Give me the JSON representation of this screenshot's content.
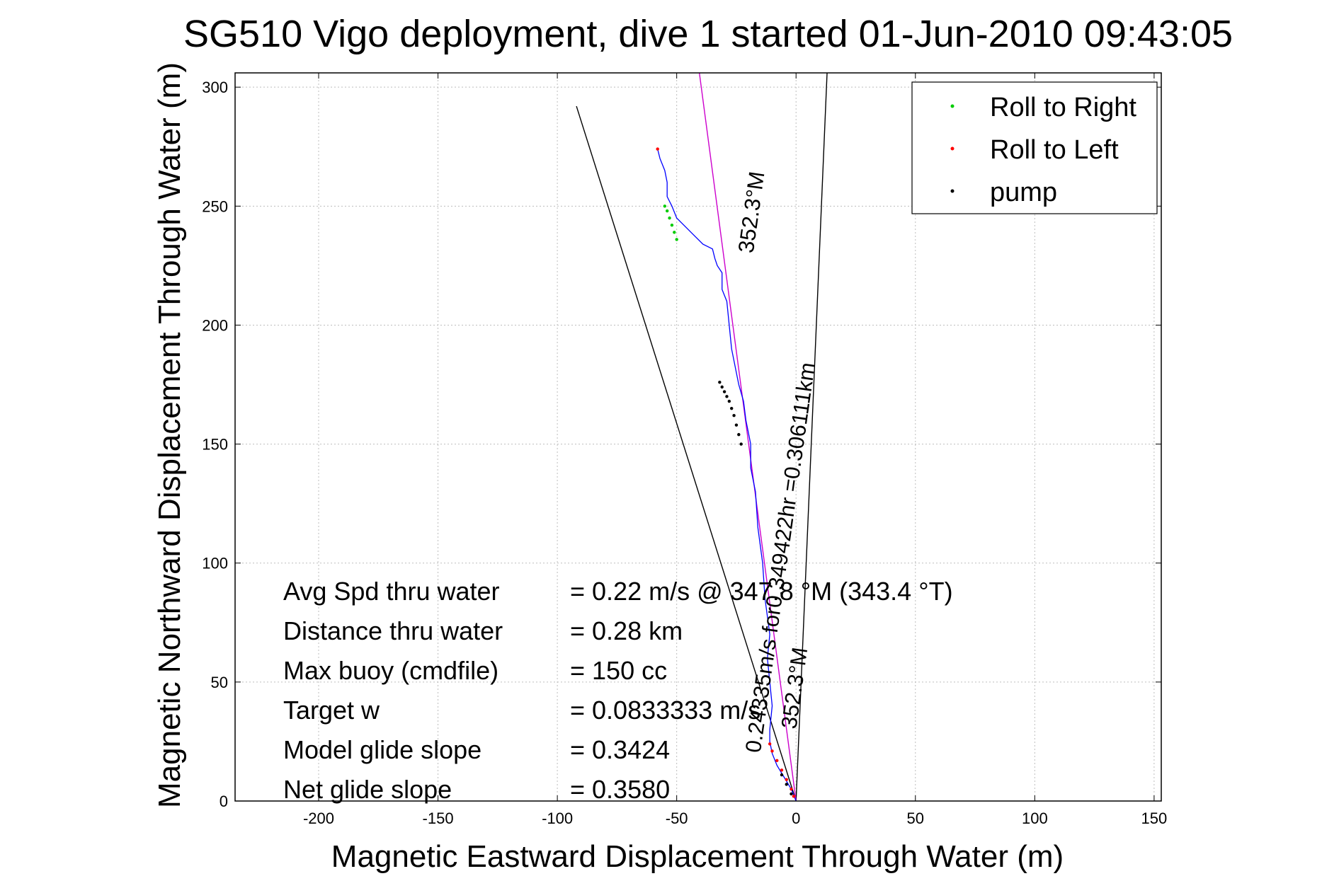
{
  "chart_data": {
    "type": "line",
    "title": "SG510 Vigo deployment, dive 1 started 01-Jun-2010 09:43:05",
    "xlabel": "Magnetic Eastward Displacement Through Water (m)",
    "ylabel": "Magnetic Northward Displacement Through Water (m)",
    "xlim": [
      -235,
      153
    ],
    "ylim": [
      0,
      306
    ],
    "xticks": [
      -200,
      -150,
      -100,
      -50,
      0,
      50,
      100,
      150
    ],
    "yticks": [
      0,
      50,
      100,
      150,
      200,
      250,
      300
    ],
    "grid": true,
    "legend_position": "top-right",
    "legend": [
      {
        "label": "Roll to Right",
        "color": "#00cc00"
      },
      {
        "label": "Roll to Left",
        "color": "#ff0000"
      },
      {
        "label": "pump",
        "color": "#000000"
      }
    ],
    "series": [
      {
        "color": "#0000ff",
        "x": [
          0,
          -2,
          -5,
          -8,
          -10,
          -11,
          -11,
          -10,
          -11,
          -12,
          -11,
          -13,
          -14,
          -16,
          -17,
          -19,
          -19,
          -21,
          -22,
          -24,
          -25,
          -27,
          -28,
          -29,
          -31,
          -31,
          -33,
          -34,
          -35,
          -39,
          -43,
          -47,
          -50,
          -52,
          -54,
          -54,
          -55,
          -57,
          -58
        ],
        "y": [
          0,
          5,
          10,
          15,
          20,
          25,
          30,
          40,
          50,
          60,
          70,
          85,
          100,
          115,
          130,
          140,
          150,
          160,
          168,
          175,
          180,
          190,
          200,
          210,
          215,
          222,
          225,
          228,
          232,
          234,
          238,
          242,
          245,
          250,
          254,
          260,
          265,
          270,
          274
        ]
      },
      {
        "name": "Roll to Right",
        "color": "#00cc00",
        "x": [
          -50,
          -51,
          -52,
          -53,
          -54,
          -55
        ],
        "y": [
          236,
          239,
          242,
          245,
          248,
          250
        ]
      },
      {
        "name": "Roll to Left",
        "color": "#ff0000",
        "x": [
          -1,
          -2,
          -4,
          -6,
          -8,
          -10,
          -11,
          -58
        ],
        "y": [
          2,
          5,
          9,
          13,
          17,
          21,
          24,
          274
        ]
      },
      {
        "name": "pump",
        "color": "#000000",
        "x": [
          -23,
          -24,
          -25,
          -26,
          -27,
          -28,
          -29,
          -30,
          -31,
          -32,
          -2,
          -4,
          -6
        ],
        "y": [
          150,
          154,
          158,
          162,
          165,
          168,
          170,
          172,
          174,
          176,
          3,
          7,
          11
        ]
      }
    ],
    "reference_lines": [
      {
        "color": "#000000",
        "x": [
          0,
          -92
        ],
        "y": [
          0,
          292
        ]
      },
      {
        "color": "#000000",
        "x": [
          0,
          13
        ],
        "y": [
          0,
          306
        ]
      },
      {
        "color": "#cc00cc",
        "x": [
          0,
          -40.5
        ],
        "y": [
          0,
          306
        ]
      }
    ],
    "annotations": [
      {
        "text": "0.24335m/s for0.349422hr =0.306111km",
        "x": -15,
        "y": 20,
        "angle_deg": -82
      },
      {
        "text": "352.3°M",
        "x": 0,
        "y": 30,
        "angle_deg": -82
      },
      {
        "text": "352.3°M",
        "x": -18,
        "y": 230,
        "angle_deg": -82
      }
    ],
    "stats": [
      {
        "label": "Avg Spd thru water",
        "value": "=  0.22 m/s @ 347.8 °M (343.4 °T)"
      },
      {
        "label": "Distance thru water",
        "value": "=  0.28 km"
      },
      {
        "label": "Max buoy (cmdfile)",
        "value": "= 150 cc"
      },
      {
        "label": "Target w",
        "value": "= 0.0833333 m/s"
      },
      {
        "label": "Model glide slope",
        "value": "= 0.3424"
      },
      {
        "label": "Net glide slope",
        "value": "= 0.3580"
      }
    ]
  }
}
